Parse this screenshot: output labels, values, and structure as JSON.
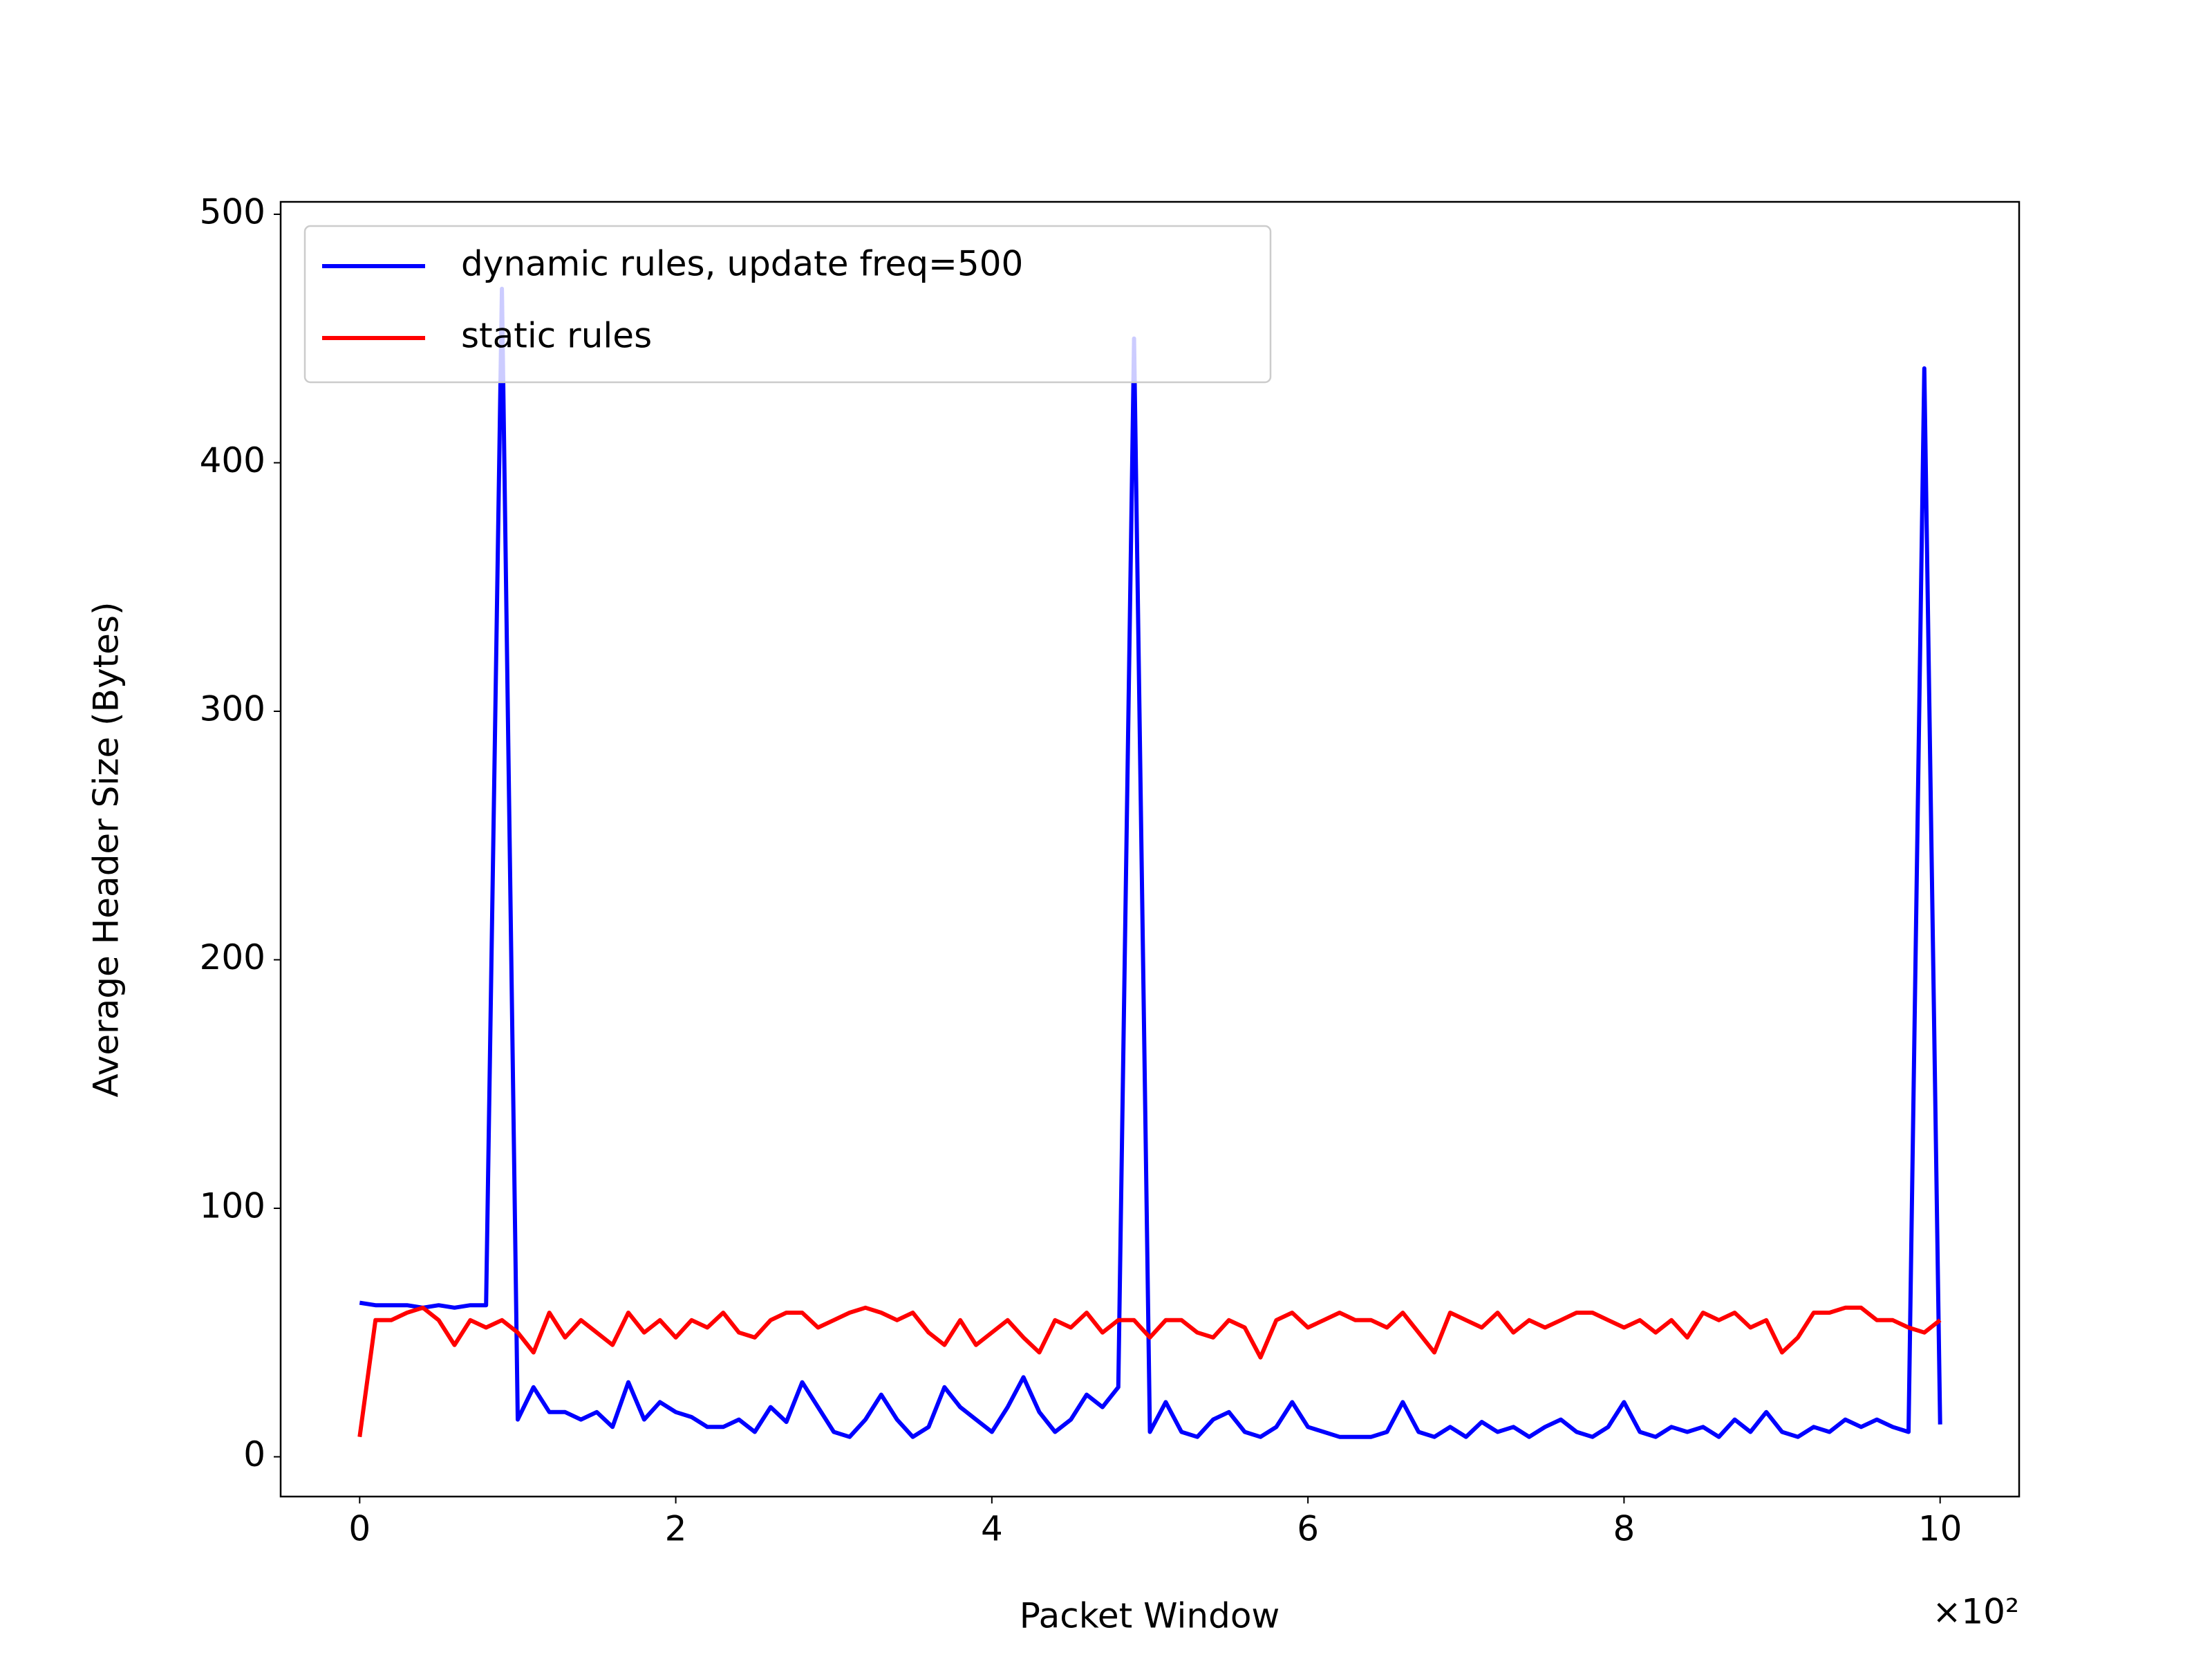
{
  "chart_data": {
    "type": "line",
    "xlabel": "Packet Window",
    "ylabel": "Average Header Size (Bytes)",
    "x_offset_label": "×10²",
    "x": [
      0,
      0.1,
      0.2,
      0.3,
      0.4,
      0.5,
      0.6,
      0.7,
      0.8,
      0.9,
      1,
      1.1,
      1.2,
      1.3,
      1.4,
      1.5,
      1.6,
      1.7,
      1.8,
      1.9,
      2,
      2.1,
      2.2,
      2.3,
      2.4,
      2.5,
      2.6,
      2.7,
      2.8,
      2.9,
      3,
      3.1,
      3.2,
      3.3,
      3.4,
      3.5,
      3.6,
      3.7,
      3.8,
      3.9,
      4,
      4.1,
      4.2,
      4.3,
      4.4,
      4.5,
      4.6,
      4.7,
      4.8,
      4.9,
      5,
      5.1,
      5.2,
      5.3,
      5.4,
      5.5,
      5.6,
      5.7,
      5.8,
      5.9,
      6,
      6.1,
      6.2,
      6.3,
      6.4,
      6.5,
      6.6,
      6.7,
      6.8,
      6.9,
      7,
      7.1,
      7.2,
      7.3,
      7.4,
      7.5,
      7.6,
      7.7,
      7.8,
      7.9,
      8,
      8.1,
      8.2,
      8.3,
      8.4,
      8.5,
      8.6,
      8.7,
      8.8,
      8.9,
      9,
      9.1,
      9.2,
      9.3,
      9.4,
      9.5,
      9.6,
      9.7,
      9.8,
      9.9,
      10
    ],
    "series": [
      {
        "name": "dynamic rules, update freq=500",
        "color": "#0000ff",
        "values": [
          62,
          61,
          61,
          61,
          60,
          61,
          60,
          61,
          61,
          470,
          15,
          28,
          18,
          18,
          15,
          18,
          12,
          30,
          15,
          22,
          18,
          16,
          12,
          12,
          15,
          10,
          20,
          14,
          30,
          20,
          10,
          8,
          15,
          25,
          15,
          8,
          12,
          28,
          20,
          15,
          10,
          20,
          32,
          18,
          10,
          15,
          25,
          20,
          28,
          450,
          10,
          22,
          10,
          8,
          15,
          18,
          10,
          8,
          12,
          22,
          12,
          10,
          8,
          8,
          8,
          10,
          22,
          10,
          8,
          12,
          8,
          14,
          10,
          12,
          8,
          12,
          15,
          10,
          8,
          12,
          22,
          10,
          8,
          12,
          10,
          12,
          8,
          15,
          10,
          18,
          10,
          8,
          12,
          10,
          15,
          12,
          15,
          12,
          10,
          438,
          13
        ]
      },
      {
        "name": "static rules",
        "color": "#ff0000",
        "values": [
          8,
          55,
          55,
          58,
          60,
          55,
          45,
          55,
          52,
          55,
          50,
          42,
          58,
          48,
          55,
          50,
          45,
          58,
          50,
          55,
          48,
          55,
          52,
          58,
          50,
          48,
          55,
          58,
          58,
          52,
          55,
          58,
          60,
          58,
          55,
          58,
          50,
          45,
          55,
          45,
          50,
          55,
          48,
          42,
          55,
          52,
          58,
          50,
          55,
          55,
          48,
          55,
          55,
          50,
          48,
          55,
          52,
          40,
          55,
          58,
          52,
          55,
          58,
          55,
          55,
          52,
          58,
          50,
          42,
          58,
          55,
          52,
          58,
          50,
          55,
          52,
          55,
          58,
          58,
          55,
          52,
          55,
          50,
          55,
          48,
          58,
          55,
          58,
          52,
          55,
          42,
          48,
          58,
          58,
          60,
          60,
          55,
          55,
          52,
          50,
          55
        ]
      }
    ],
    "xlim": [
      -0.5,
      10.5
    ],
    "xticks": [
      0,
      2,
      4,
      6,
      8,
      10
    ],
    "ylim": [
      -16,
      505
    ],
    "yticks": [
      0,
      100,
      200,
      300,
      400,
      500
    ],
    "grid": false,
    "legend": "upper left"
  }
}
